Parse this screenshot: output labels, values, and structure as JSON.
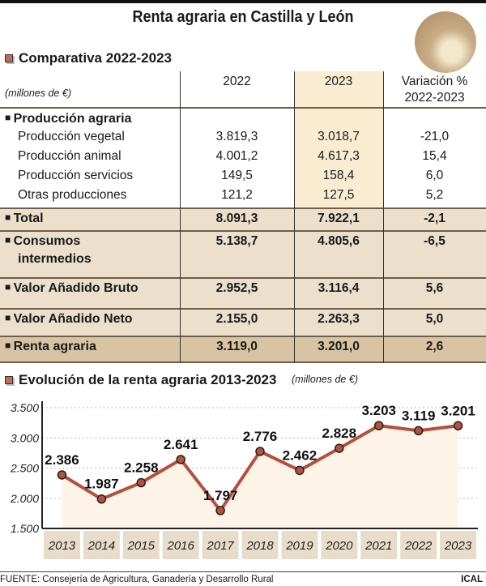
{
  "title": "Renta agraria en Castilla y León",
  "logo_icon": "wheat-sun-icon",
  "table": {
    "section_title": "Comparativa 2022-2023",
    "unit": "(millones de €)",
    "headers": [
      "2022",
      "2023",
      "Variación %",
      "2022-2023"
    ],
    "group_label": "Producción agraria",
    "sub_rows": [
      {
        "label": "Producción vegetal",
        "v2022": "3.819,3",
        "v2023": "3.018,7",
        "var": "-21,0"
      },
      {
        "label": "Producción animal",
        "v2022": "4.001,2",
        "v2023": "4.617,3",
        "var": "15,4"
      },
      {
        "label": "Producción servicios",
        "v2022": "149,5",
        "v2023": "158,4",
        "var": "6,0"
      },
      {
        "label": "Otras producciones",
        "v2022": "121,2",
        "v2023": "127,5",
        "var": "5,2"
      }
    ],
    "bold_rows": [
      {
        "label": "Total",
        "v2022": "8.091,3",
        "v2023": "7.922,1",
        "var": "-2,1"
      },
      {
        "label": "Consumos",
        "label2": "intermedios",
        "v2022": "5.138,7",
        "v2023": "4.805,6",
        "var": "-6,5"
      },
      {
        "label": "Valor Añadido Bruto",
        "v2022": "2.952,5",
        "v2023": "3.116,4",
        "var": "5,6"
      },
      {
        "label": "Valor Añadido Neto",
        "v2022": "2.155,0",
        "v2023": "2.263,3",
        "var": "5,0"
      },
      {
        "label": "Renta agraria",
        "v2022": "3.119,0",
        "v2023": "3.201,0",
        "var": "2,6"
      }
    ]
  },
  "chart_data": {
    "type": "line",
    "title": "Evolución de la renta agraria 2013-2023",
    "unit": "(millones de €)",
    "x": [
      "2013",
      "2014",
      "2015",
      "2016",
      "2017",
      "2018",
      "2019",
      "2020",
      "2021",
      "2022",
      "2023"
    ],
    "values": [
      2386,
      1987,
      2258,
      2641,
      1797,
      2776,
      2462,
      2828,
      3203,
      3119,
      3201
    ],
    "labels": [
      "2.386",
      "1.987",
      "2.258",
      "2.641",
      "1.797",
      "2.776",
      "2.462",
      "2.828",
      "3.203",
      "3.119",
      "3.201"
    ],
    "yticks": [
      "3.500",
      "3.000",
      "2.500",
      "2.000",
      "1.500"
    ],
    "ytick_values": [
      3500,
      3000,
      2500,
      2000,
      1500
    ],
    "ylim": [
      1500,
      3500
    ],
    "grid": true,
    "line_color": "#b5503c",
    "fill_color": "#fdf3e6"
  },
  "footer": {
    "source": "FUENTE: Consejería de Agricultura, Ganadería y Desarrollo Rural",
    "brand": "ICAL"
  }
}
